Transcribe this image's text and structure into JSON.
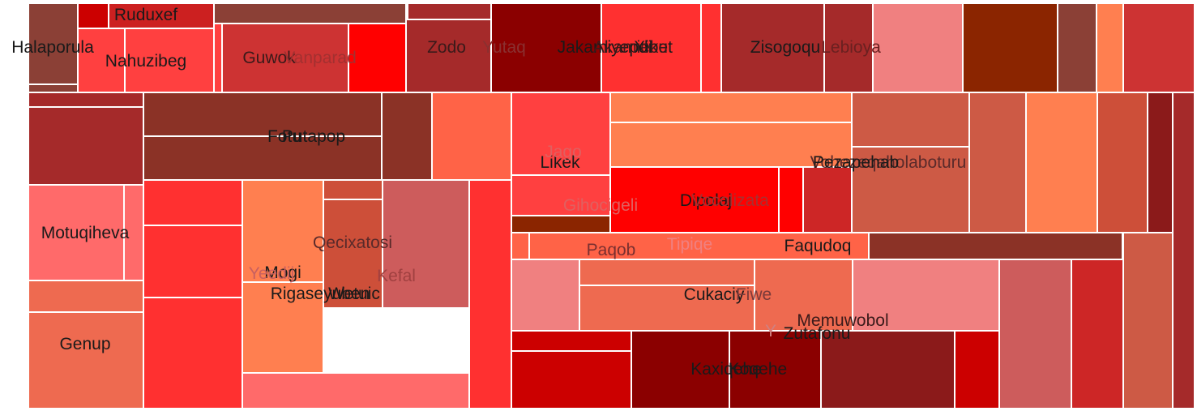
{
  "chart_data": {
    "type": "treemap",
    "title": "",
    "groups": [
      {
        "name": "Ruduxef",
        "label_color": "#1a1a1a",
        "cells": [
          {
            "color": "#8b4036",
            "value": 4
          },
          {
            "color": "#cc0000",
            "value": 1.5
          },
          {
            "color": "#cc2020",
            "value": 3
          },
          {
            "color": "#ffffff",
            "value": 0
          },
          {
            "color": "#8b4036",
            "value": 10
          },
          {
            "color": "#a52a2a",
            "value": 4
          }
        ]
      },
      {
        "name": "Halaporula",
        "label_color": "#1a1a1a",
        "cells": [
          {
            "color": "#8b4036",
            "value": 6
          },
          {
            "color": "#8b4036",
            "value": 0.6
          }
        ]
      },
      {
        "name": "Nahuzibeg",
        "label_color": "#1a1a1a",
        "cells": [
          {
            "color": "#ff4040",
            "value": 4.4
          },
          {
            "color": "#ff4040",
            "value": 8.5
          },
          {
            "color": "#ff4040",
            "value": 0.6
          }
        ]
      },
      {
        "name": "Guwok",
        "label_color": "#3a1a1a",
        "cells": [
          {
            "color": "#cd3333",
            "value": 13
          },
          {
            "color": "#ff0000",
            "value": 6
          }
        ]
      },
      {
        "name": "Vanparad",
        "label_color": "#a33030",
        "cells": []
      },
      {
        "name": "Zodo",
        "label_color": "#3a1a1a",
        "cells": [
          {
            "color": "#a52a2a",
            "value": 8.5
          }
        ]
      },
      {
        "name": "Yutaq",
        "label_color": "#8a3030",
        "cells": []
      },
      {
        "name": "Jakamiyepdi",
        "label_color": "#1a1a1a",
        "cells": [
          {
            "color": "#8b0000",
            "value": 12
          }
        ]
      },
      {
        "name": "Xibet",
        "label_color": "#1a1a1a",
        "cells": [
          {
            "color": "#ff3030",
            "value": 10
          },
          {
            "color": "#ff3030",
            "value": 2
          }
        ]
      },
      {
        "name": "Akamieku",
        "label_color": "#3a1a1a",
        "cells": []
      },
      {
        "name": "Zisogoqu",
        "label_color": "#1a1a1a",
        "cells": [
          {
            "color": "#a52a2a",
            "value": 10.5
          },
          {
            "color": "#a52a2a",
            "value": 5
          }
        ]
      },
      {
        "name": "Lebioya",
        "label_color": "#6a2020",
        "cells": [
          {
            "color": "#f08080",
            "value": 9.5
          },
          {
            "color": "#8b2500",
            "value": 10
          },
          {
            "color": "#8b4036",
            "value": 4
          },
          {
            "color": "#ff7f50",
            "value": 3
          },
          {
            "color": "#cd3333",
            "value": 8
          }
        ]
      },
      {
        "name": "Fotu",
        "label_color": "#1a1a1a",
        "cells": [
          {
            "color": "#a52a2a",
            "value": 1.5
          },
          {
            "color": "#a52a2a",
            "value": 14
          },
          {
            "color": "#8b3226",
            "value": 13
          },
          {
            "color": "#8b3226",
            "value": 13
          },
          {
            "color": "#8b3226",
            "value": 6.5
          },
          {
            "color": "#ff6347",
            "value": 10
          }
        ]
      },
      {
        "name": "Putapop",
        "label_color": "#1a1a1a",
        "cells": []
      },
      {
        "name": "Motuqiheva",
        "label_color": "#1a1a1a",
        "cells": [
          {
            "color": "#ff6a6a",
            "value": 14
          },
          {
            "color": "#ff6a6a",
            "value": 3
          },
          {
            "color": "#ee6a50",
            "value": 5
          }
        ]
      },
      {
        "name": "Genup",
        "label_color": "#1a1a1a",
        "cells": [
          {
            "color": "#ee6a50",
            "value": 16
          }
        ]
      },
      {
        "name": "Qecixatosi",
        "label_color": "#5a2a2a",
        "cells": [
          {
            "color": "#ff3030",
            "value": 7
          },
          {
            "color": "#ff3030",
            "value": 11
          },
          {
            "color": "#ff3030",
            "value": 17
          },
          {
            "color": "#ff7f50",
            "value": 14
          },
          {
            "color": "#ff7f50",
            "value": 12
          },
          {
            "color": "#cd4f39",
            "value": 3
          },
          {
            "color": "#cd4f39",
            "value": 12
          }
        ]
      },
      {
        "name": "Mogi",
        "label_color": "#1a1a1a",
        "cells": []
      },
      {
        "name": "Yeedij",
        "label_color": "#c86060",
        "cells": []
      },
      {
        "name": "Rigaseyuben",
        "label_color": "#1a1a1a",
        "cells": []
      },
      {
        "name": "Wetuic",
        "label_color": "#1a1a1a",
        "cells": [
          {
            "color": "#cd5c5c",
            "value": 14
          },
          {
            "color": "#ff6a6a",
            "value": 9
          },
          {
            "color": "#ff3030",
            "value": 13
          }
        ]
      },
      {
        "name": "Kefal",
        "label_color": "#a04040",
        "cells": []
      },
      {
        "name": "Likek",
        "label_color": "#1a1a1a",
        "cells": [
          {
            "color": "#ff4040",
            "value": 12
          },
          {
            "color": "#ff4040",
            "value": 6
          },
          {
            "color": "#8b2500",
            "value": 2
          }
        ]
      },
      {
        "name": "Jago",
        "label_color": "#e06060",
        "cells": []
      },
      {
        "name": "Gihocigeli",
        "label_color": "#e06060",
        "cells": []
      },
      {
        "name": "Vohezeqaholaboturu",
        "label_color": "#5a2a2a",
        "cells": [
          {
            "color": "#ff7f50",
            "value": 11
          },
          {
            "color": "#ff7f50",
            "value": 16
          },
          {
            "color": "#cd5a45",
            "value": 9
          },
          {
            "color": "#cd5a45",
            "value": 14
          },
          {
            "color": "#cd5a45",
            "value": 9
          },
          {
            "color": "#ff7f50",
            "value": 11
          },
          {
            "color": "#cd4f39",
            "value": 7
          },
          {
            "color": "#8b1a1a",
            "value": 4
          }
        ]
      },
      {
        "name": "Pezapehab",
        "label_color": "#1a1a1a",
        "cells": []
      },
      {
        "name": "Dipolaj",
        "label_color": "#1a1a1a",
        "cells": [
          {
            "color": "#ff0000",
            "value": 19
          },
          {
            "color": "#ff0000",
            "value": 2
          },
          {
            "color": "#cd2626",
            "value": 6
          }
        ]
      },
      {
        "name": "Vocolizata",
        "label_color": "#a83030",
        "cells": []
      },
      {
        "name": "Faqudoq",
        "label_color": "#1a1a1a",
        "cells": [
          {
            "color": "#ff6347",
            "value": 4.6
          },
          {
            "color": "#8b3226",
            "value": 13
          },
          {
            "color": "#a52a2a",
            "value": 12
          }
        ]
      },
      {
        "name": "Paqob",
        "label_color": "#7a3030",
        "cells": [
          {
            "color": "#ff6347",
            "value": 1
          }
        ]
      },
      {
        "name": "Tipiqe",
        "label_color": "#f08080",
        "cells": []
      },
      {
        "name": "Cukaciy",
        "label_color": "#1a1a1a",
        "cells": [
          {
            "color": "#f08080",
            "value": 4
          },
          {
            "color": "#ee6a50",
            "value": 11
          },
          {
            "color": "#ee6a50",
            "value": 12
          },
          {
            "color": "#ee6a50",
            "value": 7
          }
        ]
      },
      {
        "name": "Fiwe",
        "label_color": "#7a3a3a",
        "cells": []
      },
      {
        "name": "Memuwobol",
        "label_color": "#3a1a1a",
        "cells": [
          {
            "color": "#f08080",
            "value": 11
          },
          {
            "color": "#cd5c5c",
            "value": 12
          },
          {
            "color": "#cd2626",
            "value": 12
          },
          {
            "color": "#cd5a45",
            "value": 14
          }
        ]
      },
      {
        "name": "Y",
        "label_color": "#d08080",
        "cells": []
      },
      {
        "name": "Zutafonu",
        "label_color": "#1a1a1a",
        "cells": [
          {
            "color": "#8b1a1a",
            "value": 12
          },
          {
            "color": "#cc0000",
            "value": 4
          }
        ]
      },
      {
        "name": "Kaxiqehe",
        "label_color": "#1a1a1a",
        "cells": [
          {
            "color": "#cc0000",
            "value": 4
          },
          {
            "color": "#cc0000",
            "value": 12
          },
          {
            "color": "#8b0000",
            "value": 14
          },
          {
            "color": "#8b0000",
            "value": 13
          }
        ]
      },
      {
        "name": "Koqehe",
        "label_color": "#1a1a1a",
        "cells": []
      }
    ]
  }
}
